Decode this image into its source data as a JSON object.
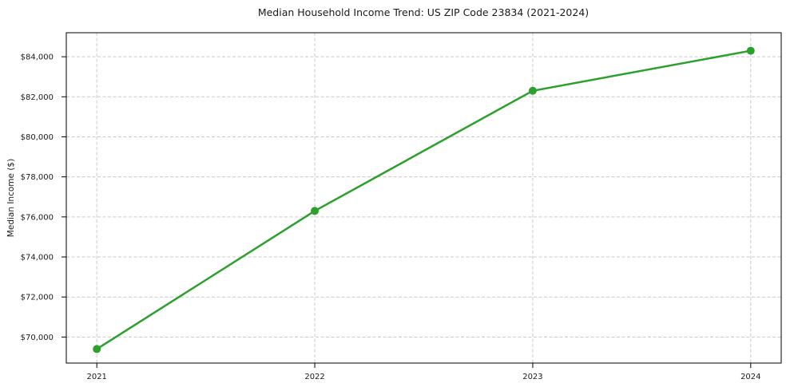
{
  "chart_data": {
    "type": "line",
    "title": "Median Household Income Trend: US ZIP Code 23834 (2021-2024)",
    "xlabel": "",
    "ylabel": "Median Income ($)",
    "x": [
      2021,
      2022,
      2023,
      2024
    ],
    "x_tick_labels": [
      "2021",
      "2022",
      "2023",
      "2024"
    ],
    "series": [
      {
        "values": [
          69400,
          76300,
          82300,
          84300
        ],
        "color": "#2ca02c",
        "marker": "circle"
      }
    ],
    "y_ticks": [
      70000,
      72000,
      74000,
      76000,
      78000,
      80000,
      82000,
      84000
    ],
    "y_tick_labels": [
      "$70,000",
      "$72,000",
      "$74,000",
      "$76,000",
      "$78,000",
      "$80,000",
      "$82,000",
      "$84,000"
    ],
    "xlim": [
      2020.86,
      2024.14
    ],
    "ylim": [
      68700,
      85200
    ],
    "grid": true,
    "grid_style": "dashed",
    "grid_color": "#c9c9c9",
    "axis_color": "#000000",
    "text_color": "#1a1a1a",
    "background": "#ffffff",
    "legend": "none"
  }
}
